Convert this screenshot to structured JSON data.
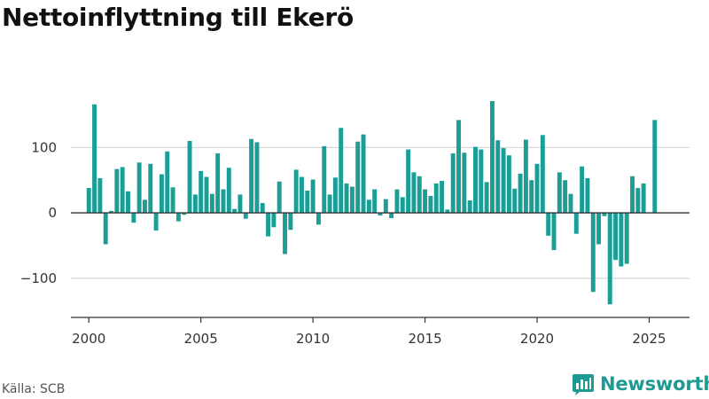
{
  "title": "Nettoinflyttning till Ekerö",
  "source": "Källa: SCB",
  "brand": {
    "name": "Newsworthy",
    "icon": "chart-bubble-icon"
  },
  "colors": {
    "bar": "#1a9e96",
    "grid": "#d9d9d9",
    "zero": "#333333",
    "brand": "#1f9a92"
  },
  "chart_data": {
    "type": "bar",
    "frequency": "quarterly",
    "x_start": 2000.0,
    "x_step": 0.25,
    "xlim": [
      1999.2,
      2026.8
    ],
    "ylim": [
      -160,
      190
    ],
    "yticks": [
      -100,
      0,
      100
    ],
    "ytick_labels": [
      "−100",
      "0",
      "100"
    ],
    "xticks": [
      2000,
      2005,
      2010,
      2015,
      2020,
      2025
    ],
    "xtick_labels": [
      "2000",
      "2005",
      "2010",
      "2015",
      "2020",
      "2025"
    ],
    "grid": true,
    "values": [
      38,
      166,
      53,
      -48,
      3,
      67,
      70,
      33,
      -15,
      77,
      20,
      75,
      -27,
      59,
      94,
      39,
      -13,
      -3,
      110,
      28,
      64,
      55,
      29,
      91,
      36,
      69,
      6,
      28,
      -9,
      113,
      108,
      15,
      -36,
      -22,
      48,
      -63,
      -26,
      66,
      55,
      34,
      51,
      -18,
      102,
      28,
      54,
      130,
      45,
      40,
      109,
      120,
      20,
      36,
      -4,
      21,
      -8,
      36,
      24,
      97,
      62,
      56,
      36,
      26,
      45,
      49,
      5,
      91,
      142,
      92,
      19,
      101,
      97,
      47,
      171,
      111,
      99,
      88,
      37,
      60,
      112,
      50,
      75,
      119,
      -35,
      -57,
      62,
      50,
      29,
      -32,
      71,
      53,
      -121,
      -48,
      -5,
      -140,
      -72,
      -82,
      -78,
      56,
      38,
      45,
      0,
      142
    ]
  }
}
